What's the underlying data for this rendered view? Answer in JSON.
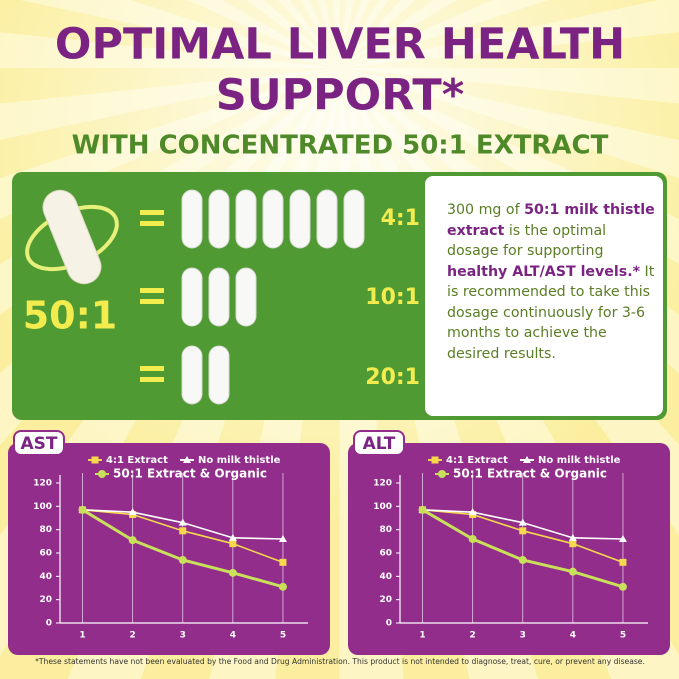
{
  "header": {
    "title_lines": [
      "OPTIMAL LIVER HEALTH",
      "SUPPORT*"
    ],
    "subtitle": "WITH CONCENTRATED 50:1 EXTRACT"
  },
  "comparison": {
    "main_ratio": "50:1",
    "rows": [
      "4:1",
      "10:1",
      "20:1"
    ]
  },
  "panel": {
    "text": [
      {
        "text": "300 mg of ",
        "bold": false
      },
      {
        "text": "50:1 milk thistle extract",
        "bold": true
      },
      {
        "text": " is the optimal dosage for supporting ",
        "bold": false
      },
      {
        "text": "healthy ALT/AST levels.*",
        "bold": true
      },
      {
        "text": " It is recommended to take this dosage continuously for 3-6 months to achieve the desired results.",
        "bold": false
      }
    ]
  },
  "chart_data": [
    {
      "type": "line",
      "label": "AST",
      "x": [
        1,
        2,
        3,
        4,
        5
      ],
      "xlim": [
        0.55,
        5.5
      ],
      "xticks": [
        1,
        2,
        3,
        4,
        5
      ],
      "ylim": [
        0,
        120
      ],
      "yticks": [
        0,
        20,
        40,
        60,
        80,
        100,
        120
      ],
      "grid": "x",
      "series": [
        {
          "name": "4:1 Extract",
          "color": "#f6d84c",
          "marker": "square",
          "values": [
            97,
            93,
            79,
            68,
            52
          ]
        },
        {
          "name": "No milk thistle",
          "color": "#ffffff",
          "marker": "triangle",
          "values": [
            97,
            95,
            86,
            73,
            72
          ]
        },
        {
          "name": "50:1 Extract & Organic",
          "color": "#c9e05a",
          "marker": "circle",
          "values": [
            97,
            71,
            54,
            43,
            31
          ]
        }
      ]
    },
    {
      "type": "line",
      "label": "ALT",
      "x": [
        1,
        2,
        3,
        4,
        5
      ],
      "xlim": [
        0.55,
        5.5
      ],
      "xticks": [
        1,
        2,
        3,
        4,
        5
      ],
      "ylim": [
        0,
        120
      ],
      "yticks": [
        0,
        20,
        40,
        60,
        80,
        100,
        120
      ],
      "grid": "x",
      "series": [
        {
          "name": "4:1 Extract",
          "color": "#f6d84c",
          "marker": "square",
          "values": [
            97,
            93,
            79,
            68,
            52
          ]
        },
        {
          "name": "No milk thistle",
          "color": "#ffffff",
          "marker": "triangle",
          "values": [
            97,
            95,
            86,
            73,
            72
          ]
        },
        {
          "name": "50:1 Extract & Organic",
          "color": "#c9e05a",
          "marker": "circle",
          "values": [
            97,
            72,
            54,
            44,
            31
          ]
        }
      ]
    }
  ],
  "footnote": "*These statements have not been evaluated by the Food and Drug Administration. This product is not intended to diagnose, treat, cure, or prevent any disease."
}
